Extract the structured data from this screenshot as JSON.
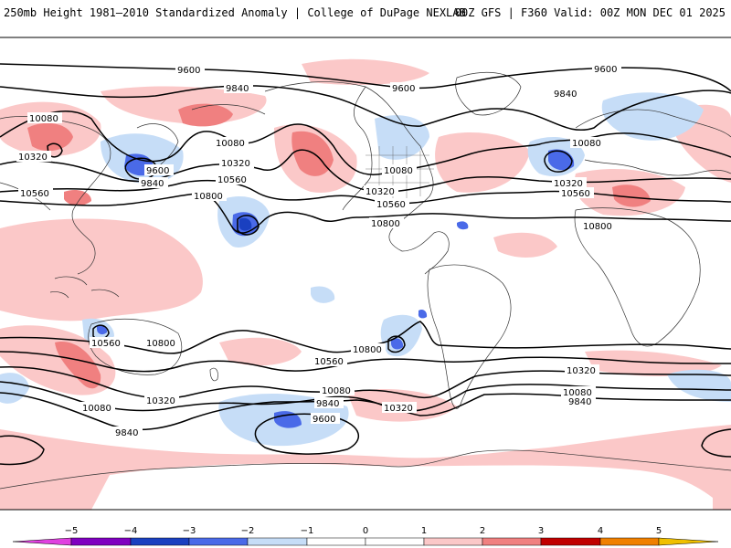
{
  "header": {
    "title_left": "250mb Height 1981–2010 Standardized Anomaly | College of DuPage NEXLAB",
    "title_right": "00Z GFS | F360 Valid: 00Z MON DEC 01 2025"
  },
  "map": {
    "contour_labels": {
      "c9600_a": "9600",
      "c9600_b": "9600",
      "c9600_c": "9600",
      "c9600_d": "9600",
      "c9600_e": "9600",
      "c9840_a": "9840",
      "c9840_b": "9840",
      "c9840_c": "9840",
      "c9840_d": "9840",
      "c9840_e": "9840",
      "c9840_f": "9840",
      "c10080_a": "10080",
      "c10080_b": "10080",
      "c10080_c": "10080",
      "c10080_d": "10080",
      "c10080_e": "10080",
      "c10080_f": "10080",
      "c10080_g": "10080",
      "c10320_a": "10320",
      "c10320_b": "10320",
      "c10320_c": "10320",
      "c10320_d": "10320",
      "c10320_e": "10320",
      "c10320_f": "10320",
      "c10320_g": "10320",
      "c10560_a": "10560",
      "c10560_b": "10560",
      "c10560_c": "10560",
      "c10560_d": "10560",
      "c10560_e": "10560",
      "c10560_f": "10560",
      "c10800_a": "10800",
      "c10800_b": "10800",
      "c10800_c": "10800",
      "c10800_d": "10800",
      "c10800_e": "10800"
    },
    "colors": {
      "neg5": "#e040e0",
      "neg4": "#8000c0",
      "neg3": "#1a40c0",
      "neg2": "#4a6ae8",
      "neg1": "#c6ddf7",
      "pos1": "#fbc8c8",
      "pos2": "#f08080",
      "pos3": "#e04040",
      "pos4": "#c00000",
      "pos5": "#f0a000"
    }
  },
  "legend": {
    "ticks": [
      "−5",
      "−4",
      "−3",
      "−2",
      "−1",
      "0",
      "1",
      "2",
      "3",
      "4",
      "5"
    ]
  }
}
